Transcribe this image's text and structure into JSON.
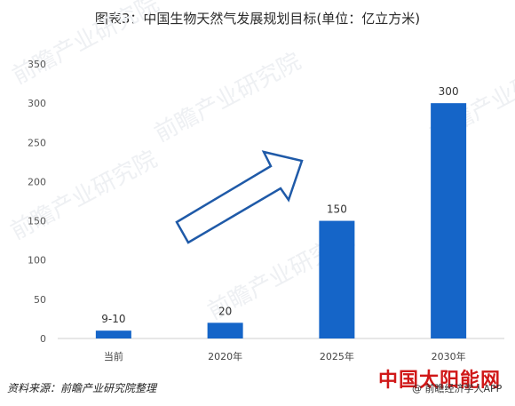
{
  "title": "图表3：中国生物天然气发展规划目标(单位：亿立方米)",
  "source": "资料来源：前瞻产业研究院整理",
  "brand": "中国太阳能网",
  "app_label": "@ 前瞻经济学人APP",
  "watermark": "前瞻产业研究院",
  "chart_data": {
    "type": "bar",
    "categories": [
      "当前",
      "2020年",
      "2025年",
      "2030年"
    ],
    "values": [
      10,
      20,
      150,
      300
    ],
    "data_labels": [
      "9-10",
      "20",
      "150",
      "300"
    ],
    "ylim": [
      0,
      350
    ],
    "yticks": [
      0,
      50,
      100,
      150,
      200,
      250,
      300,
      350
    ],
    "grid": false,
    "bar_color": "#1565c8",
    "arrow_color": "#1f5aa8",
    "xlabel": "",
    "ylabel": ""
  }
}
